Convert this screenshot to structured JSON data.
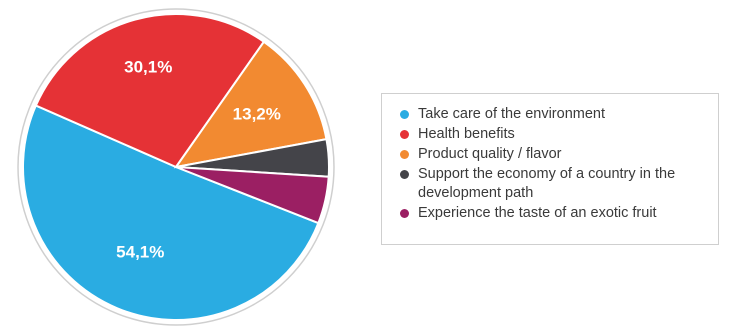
{
  "chart_data": {
    "type": "pie",
    "slices": [
      {
        "label": "Take care of the environment",
        "value": 54.1,
        "display": "54,1%",
        "color": "#2aace2"
      },
      {
        "label": "Health benefits",
        "value": 30.1,
        "display": "30,1%",
        "color": "#e53236"
      },
      {
        "label": "Product quality / flavor",
        "value": 13.2,
        "display": "13,2%",
        "color": "#f28a31"
      },
      {
        "label": "Support the economy of a country in the development path",
        "value": 4.2,
        "display": "",
        "color": "#444449"
      },
      {
        "label": "Experience the taste of an exotic fruit",
        "value": 5.3,
        "display": "",
        "color": "#9b1f63"
      }
    ],
    "legend_position": "right"
  },
  "legend": {
    "items": [
      {
        "text": "Take care of the environment",
        "color": "#2aace2"
      },
      {
        "text": "Health benefits",
        "color": "#e53236"
      },
      {
        "text": "Product quality / flavor",
        "color": "#f28a31"
      },
      {
        "text": "Support the economy of a country in the development path",
        "color": "#444449"
      },
      {
        "text": "Experience the taste of an exotic fruit",
        "color": "#9b1f63"
      }
    ]
  }
}
